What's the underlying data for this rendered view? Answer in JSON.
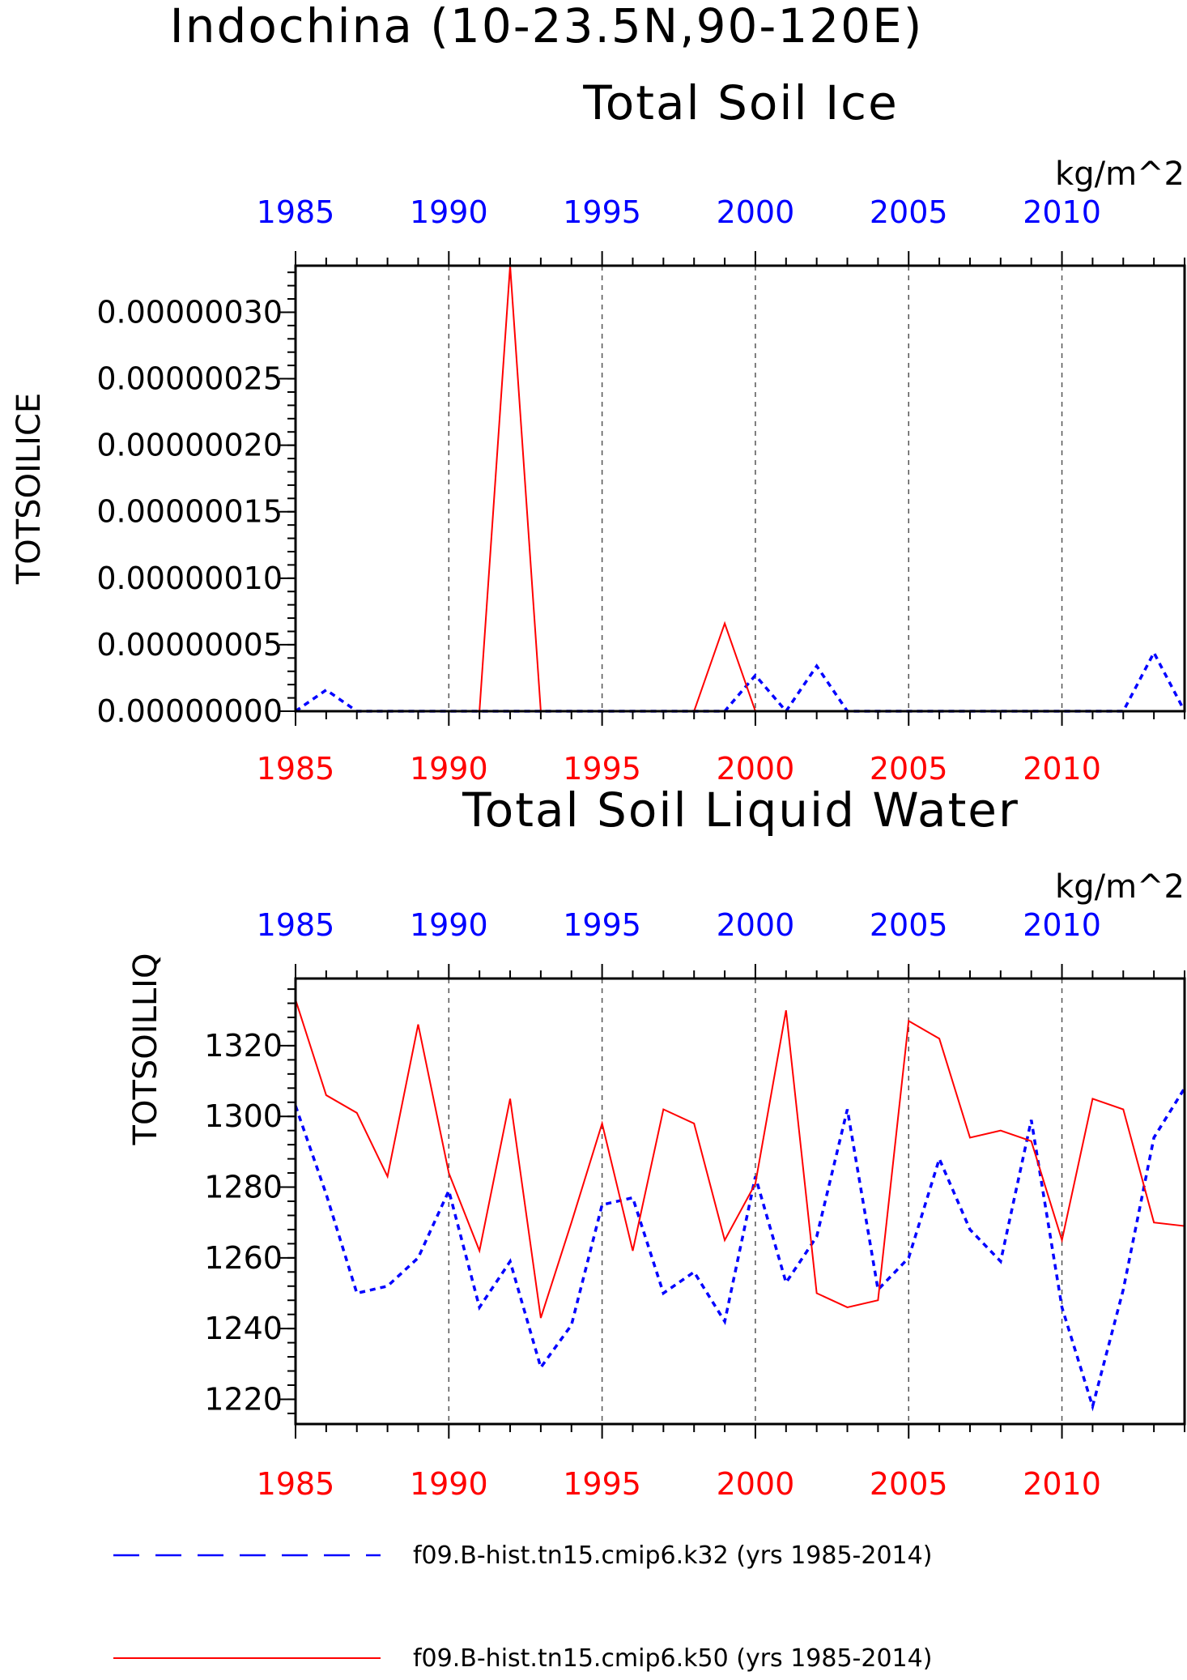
{
  "figure": {
    "title": "Indochina (10-23.5N,90-120E)"
  },
  "colors": {
    "red_series": "#ff0000",
    "blue_series": "#0000ff",
    "axis": "#000000",
    "grid": "#555555"
  },
  "chart_data": [
    {
      "type": "line",
      "title": "Total Soil Ice",
      "units": "kg/m^2",
      "ylabel": "TOTSOILICE",
      "xlim": [
        1985,
        2014
      ],
      "ylim": [
        0,
        3.35e-07
      ],
      "x_ticks": [
        1985,
        1990,
        1995,
        2000,
        2005,
        2010
      ],
      "y_ticks": [
        0,
        5e-08,
        1e-07,
        1.5e-07,
        2e-07,
        2.5e-07,
        3e-07
      ],
      "y_tick_labels": [
        "0.00000000",
        "0.00000005",
        "0.00000010",
        "0.00000015",
        "0.00000020",
        "0.00000025",
        "0.00000030"
      ],
      "x_top_tick_labels": [
        "1985",
        "1990",
        "1995",
        "2000",
        "2005",
        "2010"
      ],
      "x_bottom_tick_labels": [
        "1985",
        "1990",
        "1995",
        "2000",
        "2005",
        "2010"
      ],
      "grid": "vertical dashed at major x ticks",
      "years": [
        1985,
        1986,
        1987,
        1988,
        1989,
        1990,
        1991,
        1992,
        1993,
        1994,
        1995,
        1996,
        1997,
        1998,
        1999,
        2000,
        2001,
        2002,
        2003,
        2004,
        2005,
        2006,
        2007,
        2008,
        2009,
        2010,
        2011,
        2012,
        2013,
        2014
      ],
      "series": [
        {
          "name": "f09.B-hist.tn15.cmip6.k32 (yrs 1985-2014)",
          "color": "#0000ff",
          "style": "dashed",
          "values": [
            0,
            1.6e-08,
            0,
            0,
            0,
            0,
            0,
            0,
            0,
            0,
            0,
            0,
            0,
            0,
            0,
            2.7e-08,
            0,
            3.4e-08,
            0,
            0,
            0,
            0,
            0,
            0,
            0,
            0,
            0,
            0,
            4.4e-08,
            0
          ]
        },
        {
          "name": "f09.B-hist.tn15.cmip6.k50 (yrs 1985-2014)",
          "color": "#ff0000",
          "style": "solid",
          "values": [
            0,
            0,
            0,
            0,
            0,
            0,
            0,
            3.35e-07,
            0,
            0,
            0,
            0,
            0,
            0,
            6.6e-08,
            0,
            0,
            0,
            0,
            0,
            0,
            0,
            0,
            0,
            0,
            0,
            0,
            0,
            0,
            0
          ]
        }
      ]
    },
    {
      "type": "line",
      "title": "Total Soil Liquid Water",
      "units": "kg/m^2",
      "ylabel": "TOTSOILLIQ",
      "xlim": [
        1985,
        2014
      ],
      "ylim": [
        1213,
        1339
      ],
      "x_ticks": [
        1985,
        1990,
        1995,
        2000,
        2005,
        2010
      ],
      "y_ticks": [
        1220,
        1240,
        1260,
        1280,
        1300,
        1320
      ],
      "y_tick_labels": [
        "1220",
        "1240",
        "1260",
        "1280",
        "1300",
        "1320"
      ],
      "x_top_tick_labels": [
        "1985",
        "1990",
        "1995",
        "2000",
        "2005",
        "2010"
      ],
      "x_bottom_tick_labels": [
        "1985",
        "1990",
        "1995",
        "2000",
        "2005",
        "2010"
      ],
      "grid": "vertical dashed at major x ticks",
      "years": [
        1985,
        1986,
        1987,
        1988,
        1989,
        1990,
        1991,
        1992,
        1993,
        1994,
        1995,
        1996,
        1997,
        1998,
        1999,
        2000,
        2001,
        2002,
        2003,
        2004,
        2005,
        2006,
        2007,
        2008,
        2009,
        2010,
        2011,
        2012,
        2013,
        2014
      ],
      "series": [
        {
          "name": "f09.B-hist.tn15.cmip6.k32 (yrs 1985-2014)",
          "color": "#0000ff",
          "style": "dashed",
          "values": [
            1303,
            1278,
            1250,
            1252,
            1260,
            1279,
            1246,
            1259,
            1229,
            1241,
            1275,
            1277,
            1250,
            1256,
            1242,
            1283,
            1253,
            1266,
            1302,
            1251,
            1260,
            1288,
            1268,
            1259,
            1299,
            1246,
            1218,
            1251,
            1294,
            1308
          ]
        },
        {
          "name": "f09.B-hist.tn15.cmip6.k50 (yrs 1985-2014)",
          "color": "#ff0000",
          "style": "solid",
          "values": [
            1333,
            1306,
            1301,
            1283,
            1326,
            1284,
            1262,
            1305,
            1243,
            1270,
            1298,
            1262,
            1302,
            1298,
            1265,
            1281,
            1330,
            1250,
            1246,
            1248,
            1327,
            1322,
            1294,
            1296,
            1293,
            1265,
            1305,
            1302,
            1270,
            1269
          ]
        }
      ]
    }
  ],
  "legend": {
    "placement": "bottom",
    "entries": [
      {
        "label": "f09.B-hist.tn15.cmip6.k32 (yrs 1985-2014)",
        "color": "#0000ff",
        "style": "dashed"
      },
      {
        "label": "f09.B-hist.tn15.cmip6.k50 (yrs 1985-2014)",
        "color": "#ff0000",
        "style": "solid"
      }
    ]
  }
}
